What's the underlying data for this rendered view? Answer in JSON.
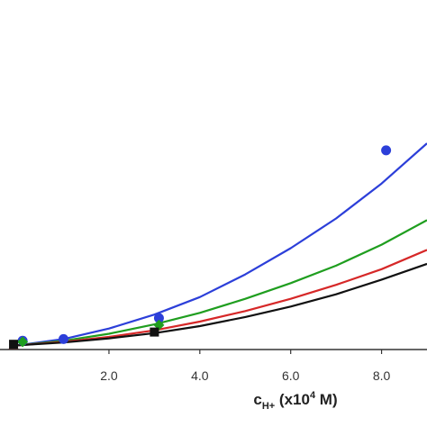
{
  "chart_data": {
    "type": "scatter",
    "title": "",
    "xlabel": {
      "prefix": "c",
      "subscript": "H+",
      "middle": " (x10",
      "superscript": "4",
      "suffix": " M)"
    },
    "ylabel": "",
    "xlim": [
      -0.2,
      9.0
    ],
    "ylim": [
      0,
      1.0
    ],
    "xticks": [
      2.0,
      4.0,
      6.0,
      8.0
    ],
    "xtick_labels": [
      "2.0",
      "4.0",
      "6.0",
      "8.0"
    ],
    "grid": false,
    "legend": "none",
    "series": [
      {
        "color": "#2c3fd9",
        "marker": "circle",
        "points": [
          {
            "x": 0.1,
            "y": 0.025
          },
          {
            "x": 1.0,
            "y": 0.03
          },
          {
            "x": 3.1,
            "y": 0.09
          },
          {
            "x": 8.1,
            "y": 0.57
          }
        ],
        "fit": [
          {
            "x": 0,
            "y": 0.012
          },
          {
            "x": 1,
            "y": 0.03
          },
          {
            "x": 2,
            "y": 0.06
          },
          {
            "x": 3,
            "y": 0.1
          },
          {
            "x": 4,
            "y": 0.15
          },
          {
            "x": 5,
            "y": 0.215
          },
          {
            "x": 6,
            "y": 0.29
          },
          {
            "x": 7,
            "y": 0.375
          },
          {
            "x": 8,
            "y": 0.475
          },
          {
            "x": 9,
            "y": 0.59
          }
        ]
      },
      {
        "color": "#1f9e1f",
        "marker": "diamond",
        "points": [
          {
            "x": 0.1,
            "y": 0.022
          },
          {
            "x": 3.1,
            "y": 0.07
          }
        ],
        "fit": [
          {
            "x": 0,
            "y": 0.012
          },
          {
            "x": 1,
            "y": 0.025
          },
          {
            "x": 2,
            "y": 0.045
          },
          {
            "x": 3,
            "y": 0.072
          },
          {
            "x": 4,
            "y": 0.105
          },
          {
            "x": 5,
            "y": 0.145
          },
          {
            "x": 6,
            "y": 0.19
          },
          {
            "x": 7,
            "y": 0.24
          },
          {
            "x": 8,
            "y": 0.3
          },
          {
            "x": 9,
            "y": 0.37
          }
        ]
      },
      {
        "color": "#d62828",
        "marker": "triangle",
        "points": [
          {
            "x": -0.1,
            "y": 0.012
          }
        ],
        "fit": [
          {
            "x": 0,
            "y": 0.012
          },
          {
            "x": 1,
            "y": 0.022
          },
          {
            "x": 2,
            "y": 0.036
          },
          {
            "x": 3,
            "y": 0.055
          },
          {
            "x": 4,
            "y": 0.08
          },
          {
            "x": 5,
            "y": 0.11
          },
          {
            "x": 6,
            "y": 0.145
          },
          {
            "x": 7,
            "y": 0.185
          },
          {
            "x": 8,
            "y": 0.23
          },
          {
            "x": 9,
            "y": 0.285
          }
        ]
      },
      {
        "color": "#111111",
        "marker": "square",
        "points": [
          {
            "x": -0.1,
            "y": 0.015
          },
          {
            "x": 3.0,
            "y": 0.05
          }
        ],
        "fit": [
          {
            "x": 0,
            "y": 0.012
          },
          {
            "x": 1,
            "y": 0.02
          },
          {
            "x": 2,
            "y": 0.032
          },
          {
            "x": 3,
            "y": 0.047
          },
          {
            "x": 4,
            "y": 0.067
          },
          {
            "x": 5,
            "y": 0.093
          },
          {
            "x": 6,
            "y": 0.123
          },
          {
            "x": 7,
            "y": 0.158
          },
          {
            "x": 8,
            "y": 0.2
          },
          {
            "x": 9,
            "y": 0.245
          }
        ]
      }
    ]
  }
}
